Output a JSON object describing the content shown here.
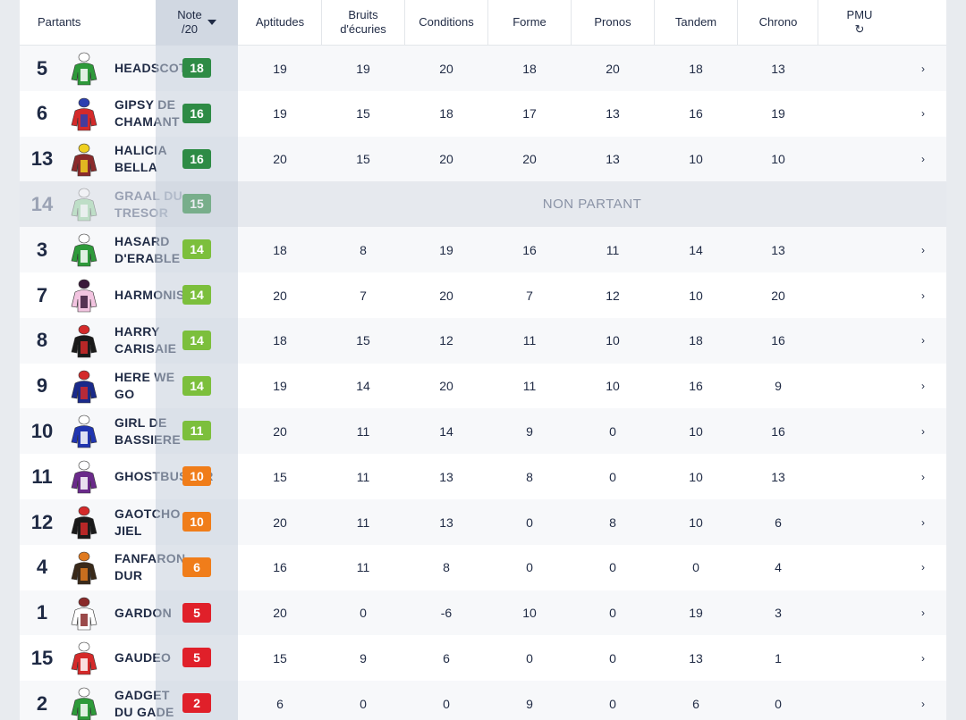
{
  "header": {
    "partants": "Partants",
    "note_line1": "Note",
    "note_line2": "/20",
    "aptitudes": "Aptitudes",
    "bruits_line1": "Bruits",
    "bruits_line2": "d'écuries",
    "conditions": "Conditions",
    "forme": "Forme",
    "pronos": "Pronos",
    "tandem": "Tandem",
    "chrono": "Chrono",
    "pmu": "PMU",
    "pmu_icon": "↻"
  },
  "non_partant_label": "NON PARTANT",
  "chevron": "›",
  "colors": {
    "green_dark": "#2e8b45",
    "green_light": "#7cbf3c",
    "orange": "#f07d1a",
    "red": "#e0202a"
  },
  "rows": [
    {
      "num": "5",
      "name": "HEADSCOT",
      "note": "18",
      "aptitudes": "19",
      "bruits": "19",
      "conditions": "20",
      "forme": "18",
      "pronos": "20",
      "tandem": "18",
      "chrono": "13"
    },
    {
      "num": "6",
      "name": "GIPSY DE CHAMANT",
      "note": "16",
      "aptitudes": "19",
      "bruits": "15",
      "conditions": "18",
      "forme": "17",
      "pronos": "13",
      "tandem": "16",
      "chrono": "19"
    },
    {
      "num": "13",
      "name": "HALICIA BELLA",
      "note": "16",
      "aptitudes": "20",
      "bruits": "15",
      "conditions": "20",
      "forme": "20",
      "pronos": "13",
      "tandem": "10",
      "chrono": "10"
    },
    {
      "num": "14",
      "name": "GRAAL DU TRESOR",
      "note": "15",
      "non_partant": true
    },
    {
      "num": "3",
      "name": "HASARD D'ERABLE",
      "note": "14",
      "aptitudes": "18",
      "bruits": "8",
      "conditions": "19",
      "forme": "16",
      "pronos": "11",
      "tandem": "14",
      "chrono": "13"
    },
    {
      "num": "7",
      "name": "HARMONISTE",
      "note": "14",
      "aptitudes": "20",
      "bruits": "7",
      "conditions": "20",
      "forme": "7",
      "pronos": "12",
      "tandem": "10",
      "chrono": "20"
    },
    {
      "num": "8",
      "name": "HARRY CARISAIE",
      "note": "14",
      "aptitudes": "18",
      "bruits": "15",
      "conditions": "12",
      "forme": "11",
      "pronos": "10",
      "tandem": "18",
      "chrono": "16"
    },
    {
      "num": "9",
      "name": "HERE WE GO",
      "note": "14",
      "aptitudes": "19",
      "bruits": "14",
      "conditions": "20",
      "forme": "11",
      "pronos": "10",
      "tandem": "16",
      "chrono": "9"
    },
    {
      "num": "10",
      "name": "GIRL DE BASSIERE",
      "note": "11",
      "aptitudes": "20",
      "bruits": "11",
      "conditions": "14",
      "forme": "9",
      "pronos": "0",
      "tandem": "10",
      "chrono": "16"
    },
    {
      "num": "11",
      "name": "GHOSTBUSTER",
      "note": "10",
      "aptitudes": "15",
      "bruits": "11",
      "conditions": "13",
      "forme": "8",
      "pronos": "0",
      "tandem": "10",
      "chrono": "13"
    },
    {
      "num": "12",
      "name": "GAOTCHO JIEL",
      "note": "10",
      "aptitudes": "20",
      "bruits": "11",
      "conditions": "13",
      "forme": "0",
      "pronos": "8",
      "tandem": "10",
      "chrono": "6"
    },
    {
      "num": "4",
      "name": "FANFARON DUR",
      "note": "6",
      "aptitudes": "16",
      "bruits": "11",
      "conditions": "8",
      "forme": "0",
      "pronos": "0",
      "tandem": "0",
      "chrono": "4"
    },
    {
      "num": "1",
      "name": "GARDON",
      "note": "5",
      "aptitudes": "20",
      "bruits": "0",
      "conditions": "-6",
      "forme": "10",
      "pronos": "0",
      "tandem": "19",
      "chrono": "3"
    },
    {
      "num": "15",
      "name": "GAUDEO",
      "note": "5",
      "aptitudes": "15",
      "bruits": "9",
      "conditions": "6",
      "forme": "0",
      "pronos": "0",
      "tandem": "13",
      "chrono": "1"
    },
    {
      "num": "2",
      "name": "GADGET DU GADE",
      "note": "2",
      "aptitudes": "6",
      "bruits": "0",
      "conditions": "0",
      "forme": "9",
      "pronos": "0",
      "tandem": "6",
      "chrono": "0"
    }
  ]
}
